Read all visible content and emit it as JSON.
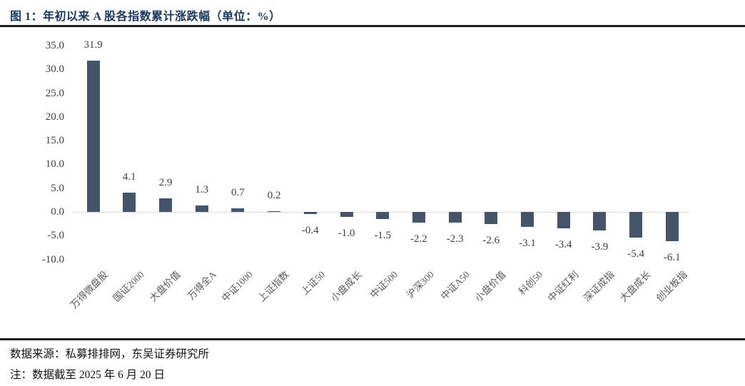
{
  "header": {
    "title": "图 1：年初以来 A 股各指数累计涨跌幅（单位：%）"
  },
  "chart_data": {
    "type": "bar",
    "title": "年初以来A股各指数累计涨跌幅",
    "unit": "%",
    "categories": [
      "万得微盘股",
      "国证2000",
      "大盘价值",
      "万得全A",
      "中证1000",
      "上证指数",
      "上证50",
      "小盘成长",
      "中证500",
      "沪深300",
      "中证A50",
      "小盘价值",
      "科创50",
      "中证红利",
      "深证成指",
      "大盘成长",
      "创业板指"
    ],
    "values": [
      31.9,
      4.1,
      2.9,
      1.3,
      0.7,
      0.2,
      -0.4,
      -1.0,
      -1.5,
      -2.2,
      -2.3,
      -2.6,
      -3.1,
      -3.4,
      -3.9,
      -5.4,
      -6.1
    ],
    "value_labels": [
      "31.9",
      "4.1",
      "2.9",
      "1.3",
      "0.7",
      "0.2",
      "-0.4",
      "-1.0",
      "-1.5",
      "-2.2",
      "-2.3",
      "-2.6",
      "-3.1",
      "-3.4",
      "-3.9",
      "-5.4",
      "-6.1"
    ],
    "yticks": [
      35,
      30,
      25,
      20,
      15,
      10,
      5,
      0,
      -5,
      -10
    ],
    "ytick_labels": [
      "35.0",
      "30.0",
      "25.0",
      "20.0",
      "15.0",
      "10.0",
      "5.0",
      "0.0",
      "-5.0",
      "-10.0"
    ],
    "ylim": [
      -10,
      35
    ],
    "xlabel": "",
    "ylabel": "",
    "grid": false,
    "legend": "none"
  },
  "footer": {
    "source": "数据来源：私募排排网，东吴证券研究所",
    "note": "注：数据截至 2025 年 6 月 20 日"
  },
  "colors": {
    "bar": "#44546A",
    "axis_line": "#D9D9D9",
    "title_text": "#17375E",
    "tick_text": "#404040",
    "value_text": "#3F3F3F",
    "category_text": "#595959",
    "rule": "#1C1C1C",
    "background": "#FFFFFF"
  }
}
